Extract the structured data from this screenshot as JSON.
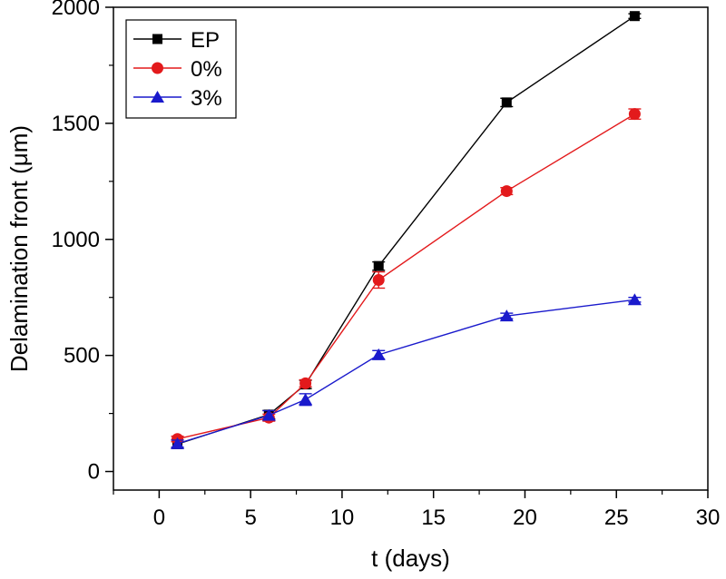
{
  "chart_data": {
    "type": "line",
    "title": "",
    "xlabel": "t (days)",
    "ylabel": "Delamination front (μm)",
    "xlim": [
      -2.5,
      30
    ],
    "ylim": [
      -80,
      2000
    ],
    "x_ticks": [
      0,
      5,
      10,
      15,
      20,
      25,
      30
    ],
    "y_ticks": [
      0,
      500,
      1000,
      1500,
      2000
    ],
    "x_tick_labels": [
      "0",
      "5",
      "10",
      "15",
      "20",
      "25",
      "30"
    ],
    "y_tick_labels": [
      "0",
      "500",
      "1000",
      "1500",
      "2000"
    ],
    "grid": false,
    "legend_position": "top-left",
    "series": [
      {
        "name": "EP",
        "marker": "square",
        "color": "#000000",
        "x": [
          1,
          6,
          8,
          12,
          19,
          26
        ],
        "y": [
          118,
          245,
          375,
          885,
          1590,
          1962
        ],
        "err": [
          18,
          18,
          18,
          18,
          18,
          10
        ]
      },
      {
        "name": "0%",
        "marker": "circle",
        "color": "#e31a1c",
        "x": [
          1,
          6,
          8,
          12,
          19,
          26
        ],
        "y": [
          140,
          232,
          380,
          825,
          1208,
          1540
        ],
        "err": [
          12,
          15,
          15,
          35,
          15,
          22
        ]
      },
      {
        "name": "3%",
        "marker": "triangle",
        "color": "#1a1acc",
        "x": [
          1,
          6,
          8,
          12,
          19,
          26
        ],
        "y": [
          120,
          242,
          310,
          503,
          670,
          740
        ],
        "err": [
          15,
          20,
          25,
          18,
          12,
          10
        ]
      }
    ]
  }
}
